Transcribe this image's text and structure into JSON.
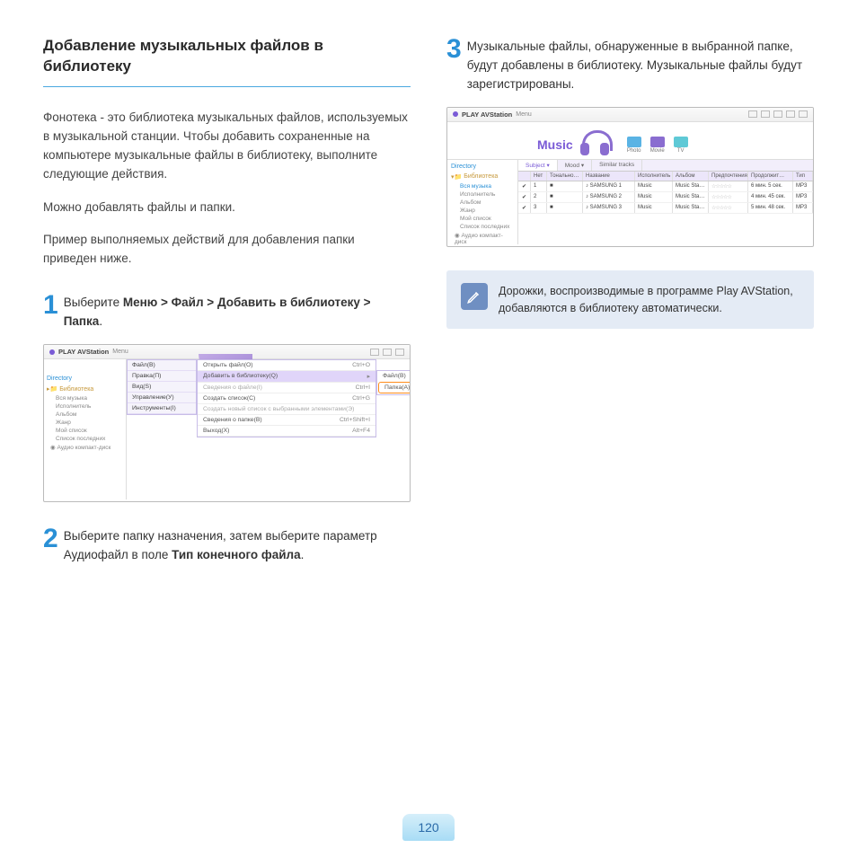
{
  "heading": "Добавление музыкальных файлов в библиотеку",
  "intro": [
    "Фонотека - это библиотека музыкальных файлов, используемых в музыкальной станции. Чтобы добавить сохраненные на компьютере музыкальные файлы в библиотеку, выполните следующие действия.",
    "Можно добавлять файлы и папки.",
    "Пример выполняемых действий для добавления папки приведен ниже."
  ],
  "steps": {
    "s1": {
      "num": "1",
      "pre": "Выберите ",
      "bold": "Меню > Файл > Добавить в библиотеку > Папка",
      "post": "."
    },
    "s2": {
      "num": "2",
      "pre": "Выберите папку назначения, затем выберите параметр Аудиофайл в поле ",
      "bold": "Тип конечного файла",
      "post": "."
    },
    "s3": {
      "num": "3",
      "text": "Музыкальные файлы, обнаруженные в выбранной папке, будут добавлены в библиотеку. Музыкальные файлы будут зарегистрированы."
    }
  },
  "screenshot1": {
    "title": "PLAY AVStation",
    "menu_label": "Menu",
    "directory_label": "Directory",
    "library_label": "Библиотека",
    "tree": [
      "Вся музыка",
      "Исполнитель",
      "Альбом",
      "Жанр",
      "Мой список",
      "Список последних"
    ],
    "audio_cd": "Аудио компакт-диск",
    "menu_left": [
      "Файл(В)",
      "Правка(П)",
      "Вид(S)",
      "Управление(У)",
      "Инструменты(I)"
    ],
    "menu_right": [
      {
        "label": "Открыть файл(O)",
        "sh": "Ctrl+O"
      },
      {
        "label": "Добавить в библиотеку(Q)",
        "sh": "",
        "hi": true
      },
      {
        "label": "Сведения о файле(I)",
        "sh": "Ctrl+I",
        "dis": true
      },
      {
        "label": "Создать список(C)",
        "sh": "Ctrl+G"
      },
      {
        "label": "Создать новый список с выбранными элементами(Э)",
        "sh": "",
        "dis": true
      },
      {
        "label": "Сведения о папке(В)",
        "sh": "Ctrl+Shift+I"
      },
      {
        "label": "Выход(X)",
        "sh": "Alt+F4"
      }
    ],
    "flyout": [
      "Файл(В)",
      "Папка(А)"
    ]
  },
  "screenshot2": {
    "title": "PLAY AVStation",
    "menu_label": "Menu",
    "music_label": "Music",
    "modes": [
      {
        "label": "Photo",
        "color": "#5ab3e4"
      },
      {
        "label": "Movie",
        "color": "#8a6dd0"
      },
      {
        "label": "TV",
        "color": "#5fc9d6"
      }
    ],
    "directory_label": "Directory",
    "library_label": "Библиотека",
    "tree": [
      "Вся музыка",
      "Исполнитель",
      "Альбом",
      "Жанр",
      "Мой список",
      "Список последних"
    ],
    "audio_cd": "Аудио компакт-диск",
    "tabs": [
      "Subject ▾",
      "Mood ▾",
      "Similar tracks"
    ],
    "columns": [
      "",
      "Нет",
      "Тонально…",
      "Название",
      "Исполнитель",
      "Альбом",
      "Предпо­чтения",
      "Продолжит…",
      "Тип"
    ],
    "rows": [
      [
        "✔",
        "1",
        "■",
        "♪ SAMSUNG 1",
        "Music",
        "Music Sta…",
        "☆☆☆☆☆",
        "6 мин. 5 сек.",
        "MP3"
      ],
      [
        "✔",
        "2",
        "■",
        "♪ SAMSUNG 2",
        "Music",
        "Music Sta…",
        "☆☆☆☆☆",
        "4 мин. 45 сек.",
        "MP3"
      ],
      [
        "✔",
        "3",
        "■",
        "♪ SAMSUNG 3",
        "Music",
        "Music Sta…",
        "☆☆☆☆☆",
        "5 мин. 48 сек.",
        "MP3"
      ]
    ]
  },
  "note": "Дорожки, воспроизводимые в программе Play AVStation, добавляются в библиотеку автоматически.",
  "page_number": "120",
  "colors": {
    "accent": "#2a90d6",
    "purple": "#7a5bd6",
    "note_bg": "#e4ebf5",
    "note_icon_bg": "#6f8fc2",
    "highlight": "#ff8c1a"
  }
}
